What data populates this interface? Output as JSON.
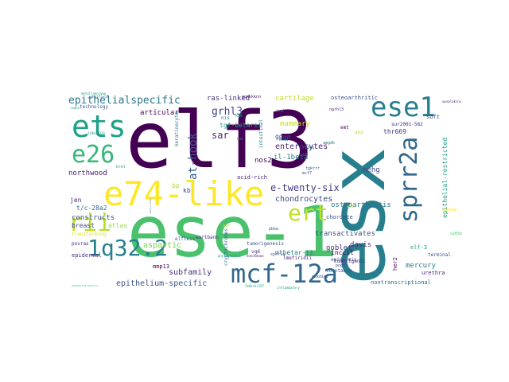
{
  "palette": {
    "dark_purple": "#440154",
    "purple": "#46327e",
    "indigo": "#365c8d",
    "blue": "#277f8e",
    "teal": "#1fa187",
    "green": "#4ac16d",
    "lime": "#a0da39",
    "yellow": "#fde725"
  },
  "words": [
    {
      "text": "elf3",
      "color": "#440154",
      "weight": 100
    },
    {
      "text": "ese-1",
      "color": "#4ac16d",
      "weight": 92
    },
    {
      "text": "esx",
      "color": "#277f8e",
      "weight": 90
    },
    {
      "text": "e74-like",
      "color": "#fde725",
      "weight": 52
    },
    {
      "text": "ets",
      "color": "#1fa187",
      "weight": 46
    },
    {
      "text": "ese1",
      "color": "#277f8e",
      "weight": 44
    },
    {
      "text": "mcf-12a",
      "color": "#31688e",
      "weight": 42
    },
    {
      "text": "sprr2a",
      "color": "#31688e",
      "weight": 40
    },
    {
      "text": "e26",
      "color": "#35b779",
      "weight": 37
    },
    {
      "text": "ert",
      "color": "#c2df23",
      "weight": 34
    },
    {
      "text": "rii",
      "color": "#b5de2b",
      "weight": 33
    },
    {
      "text": "1q32.2",
      "color": "#277f8e",
      "weight": 32
    },
    {
      "text": "epithelialspecific",
      "color": "#2a788e",
      "weight": 16
    },
    {
      "text": "at-hook",
      "color": "#365c8d",
      "weight": 16
    },
    {
      "text": "grhl3",
      "color": "#3e4989",
      "weight": 15
    },
    {
      "text": "e-twenty-six",
      "color": "#443983",
      "weight": 15
    },
    {
      "text": "sar",
      "color": "#482878",
      "weight": 13
    },
    {
      "text": "epithelium-specific",
      "color": "#3b528b",
      "weight": 12
    },
    {
      "text": "subfamily",
      "color": "#46327e",
      "weight": 12
    },
    {
      "text": "enterocytes",
      "color": "#482677",
      "weight": 12
    },
    {
      "text": "chondrocytes",
      "color": "#3e4989",
      "weight": 12
    },
    {
      "text": "osteoarthritis",
      "color": "#2a788e",
      "weight": 11
    },
    {
      "text": "transactivates",
      "color": "#3b528b",
      "weight": 11
    },
    {
      "text": "ras-linked",
      "color": "#46327e",
      "weight": 11
    },
    {
      "text": "cartilage",
      "color": "#bddf26",
      "weight": 11
    },
    {
      "text": "articular",
      "color": "#440154",
      "weight": 10
    },
    {
      "text": "northwood",
      "color": "#482475",
      "weight": 10
    },
    {
      "text": "constructs",
      "color": "#3b528b",
      "weight": 10
    },
    {
      "text": "aspartic",
      "color": "#7ad151",
      "weight": 10
    },
    {
      "text": "goblet",
      "color": "#472d7b",
      "weight": 10
    },
    {
      "text": "davis",
      "color": "#482878",
      "weight": 10
    },
    {
      "text": "mercury",
      "color": "#277f8e",
      "weight": 10
    },
    {
      "text": "nos2",
      "color": "#440154",
      "weight": 10
    },
    {
      "text": "mehg",
      "color": "#3e4989",
      "weight": 10
    },
    {
      "text": "il-1beta",
      "color": "#2a788e",
      "weight": 10
    },
    {
      "text": "mammary",
      "color": "#c8e020",
      "weight": 10
    },
    {
      "text": "ggaa",
      "color": "#3e4989",
      "weight": 9
    },
    {
      "text": "mtbetar-ii",
      "color": "#2a788e",
      "weight": 9
    },
    {
      "text": "inccit",
      "color": "#440154",
      "weight": 9
    },
    {
      "text": "epithelial-restricted",
      "color": "#1f9e89",
      "weight": 9
    },
    {
      "text": "thr669",
      "color": "#46327e",
      "weight": 9
    },
    {
      "text": "tgf-betarii",
      "color": "#1fa187",
      "weight": 9
    },
    {
      "text": "t/c-28a2",
      "color": "#31688e",
      "weight": 9
    },
    {
      "text": "jen",
      "color": "#482878",
      "weight": 9
    },
    {
      "text": "breast",
      "color": "#414487",
      "weight": 9
    },
    {
      "text": "atlas",
      "color": "#90d743",
      "weight": 9
    },
    {
      "text": "bp",
      "color": "#a8db34",
      "weight": 9
    },
    {
      "text": "kb",
      "color": "#3e4989",
      "weight": 9
    },
    {
      "text": "osteoarthritic",
      "color": "#3b528b",
      "weight": 8
    },
    {
      "text": "her2",
      "color": "#440154",
      "weight": 8
    },
    {
      "text": "elf-3",
      "color": "#1fa187",
      "weight": 8
    },
    {
      "text": "mmp13",
      "color": "#440154",
      "weight": 8
    },
    {
      "text": "chordate",
      "color": "#3b528b",
      "weight": 8
    },
    {
      "text": "acid-rich",
      "color": "#482878",
      "weight": 8
    },
    {
      "text": "cryptochromes",
      "color": "#31688e",
      "weight": 8
    },
    {
      "text": "soft",
      "color": "#3e4989",
      "weight": 8
    },
    {
      "text": "epidermal",
      "color": "#472d7b",
      "weight": 8
    },
    {
      "text": "nontranscriptional",
      "color": "#31688e",
      "weight": 8
    },
    {
      "text": "urethra",
      "color": "#482878",
      "weight": 8
    },
    {
      "text": "transforming",
      "color": "#dfe318",
      "weight": 7
    },
    {
      "text": "technology",
      "color": "#3b528b",
      "weight": 7
    },
    {
      "text": "tumorigenic",
      "color": "#482878",
      "weight": 7
    },
    {
      "text": "keratinocyte",
      "color": "#2a788e",
      "weight": 7
    },
    {
      "text": "intestinal",
      "color": "#2a788e",
      "weight": 7
    },
    {
      "text": "asp",
      "color": "#bddf26",
      "weight": 7
    },
    {
      "text": "epidermis",
      "color": "#3e4989",
      "weight": 7
    },
    {
      "text": "countaway",
      "color": "#3b528b",
      "weight": 7
    },
    {
      "text": "terminal",
      "color": "#3e4989",
      "weight": 7
    },
    {
      "text": "emt",
      "color": "#440154",
      "weight": 6
    },
    {
      "text": "nis",
      "color": "#2a788e",
      "weight": 6
    },
    {
      "text": "oa",
      "color": "#2a788e",
      "weight": 6
    },
    {
      "text": "sur2001-582",
      "color": "#472d7b",
      "weight": 6
    },
    {
      "text": "tumorigenesis",
      "color": "#3b528b",
      "weight": 6
    },
    {
      "text": "lmefiridii",
      "color": "#482878",
      "weight": 6
    },
    {
      "text": "povras",
      "color": "#482878",
      "weight": 6
    },
    {
      "text": "elfless",
      "color": "#3b528b",
      "weight": 6
    },
    {
      "text": "wartbann",
      "color": "#472d7b",
      "weight": 6
    },
    {
      "text": "eskdiet",
      "color": "#3e4989",
      "weight": 6
    },
    {
      "text": "pognb",
      "color": "#3b528b",
      "weight": 6
    },
    {
      "text": "vgd",
      "color": "#482878",
      "weight": 6
    },
    {
      "text": "s203x",
      "color": "#4ac16d",
      "weight": 6
    },
    {
      "text": "cm",
      "color": "#2a788e",
      "weight": 6
    },
    {
      "text": "krel",
      "color": "#1fa187",
      "weight": 6
    },
    {
      "text": "mcf7",
      "color": "#3b528b",
      "weight": 6
    },
    {
      "text": "sprrla",
      "color": "#3b528b",
      "weight": 5
    },
    {
      "text": "pbkw",
      "color": "#3b528b",
      "weight": 5
    },
    {
      "text": "fgkrrr",
      "color": "#3b528b",
      "weight": 5
    },
    {
      "text": "rsdvq",
      "color": "#2a788e",
      "weight": 5
    },
    {
      "text": "ngrhl3",
      "color": "#482878",
      "weight": 5
    },
    {
      "text": "gqkkkknn",
      "color": "#482878",
      "weight": 5
    },
    {
      "text": "kad",
      "color": "#3b528b",
      "weight": 5
    },
    {
      "text": "kkk",
      "color": "#1fa187",
      "weight": 5
    },
    {
      "text": "amgdk",
      "color": "#2a788e",
      "weight": 5
    },
    {
      "text": "ggpkpp",
      "color": "#fde725",
      "weight": 5
    },
    {
      "text": "pyf",
      "color": "#b5de2b",
      "weight": 5
    },
    {
      "text": "tkad",
      "color": "#2a788e",
      "weight": 5
    },
    {
      "text": "wr2",
      "color": "#c8e020",
      "weight": 5
    },
    {
      "text": "upsplakins",
      "color": "#482878",
      "weight": 4
    },
    {
      "text": "metalloenzyme",
      "color": "#1fa187",
      "weight": 4
    },
    {
      "text": "raden",
      "color": "#1fa187",
      "weight": 4
    },
    {
      "text": "whitfield",
      "color": "#31688e",
      "weight": 4
    },
    {
      "text": "318kdk320",
      "color": "#1fa187",
      "weight": 4
    },
    {
      "text": "phylogenetic",
      "color": "#1fa187",
      "weight": 4
    },
    {
      "text": "inflammatory",
      "color": "#1fa187",
      "weight": 4
    },
    {
      "text": "246krkr267",
      "color": "#1fa187",
      "weight": 4
    },
    {
      "text": "knockdown",
      "color": "#482878",
      "weight": 4
    },
    {
      "text": "epithelium-specific",
      "color": "#1fa187",
      "weight": 3
    },
    {
      "text": "multi-site",
      "color": "#3b528b",
      "weight": 3
    }
  ]
}
